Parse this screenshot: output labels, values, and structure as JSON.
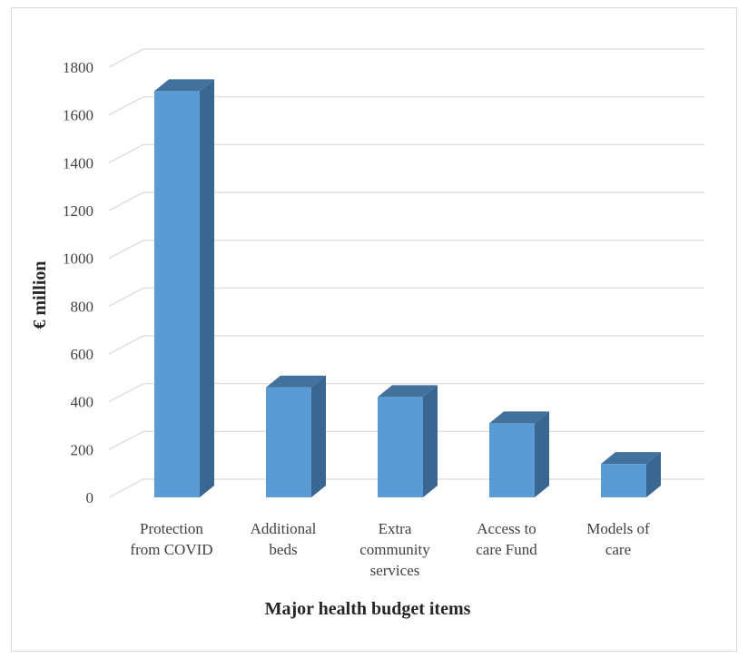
{
  "chart_data": {
    "type": "bar",
    "title": "",
    "xlabel": "Major health budget items",
    "ylabel": "€ million",
    "categories": [
      [
        "Protection",
        "from COVID"
      ],
      [
        "Additional",
        "beds"
      ],
      [
        "Extra",
        "community",
        "services"
      ],
      [
        "Access to",
        "care Fund"
      ],
      [
        "Models of",
        "care"
      ]
    ],
    "values": [
      1700,
      460,
      420,
      310,
      140
    ],
    "ylim": [
      0,
      1800
    ],
    "yticks": [
      0,
      200,
      400,
      600,
      800,
      1000,
      1200,
      1400,
      1600,
      1800
    ],
    "grid": true,
    "legend": "none",
    "style": "3d-column",
    "colors": {
      "bar_front": "#5b9bd5",
      "bar_side": "#3a6791",
      "bar_top": "#41719c",
      "grid": "#d9d9d9"
    }
  }
}
